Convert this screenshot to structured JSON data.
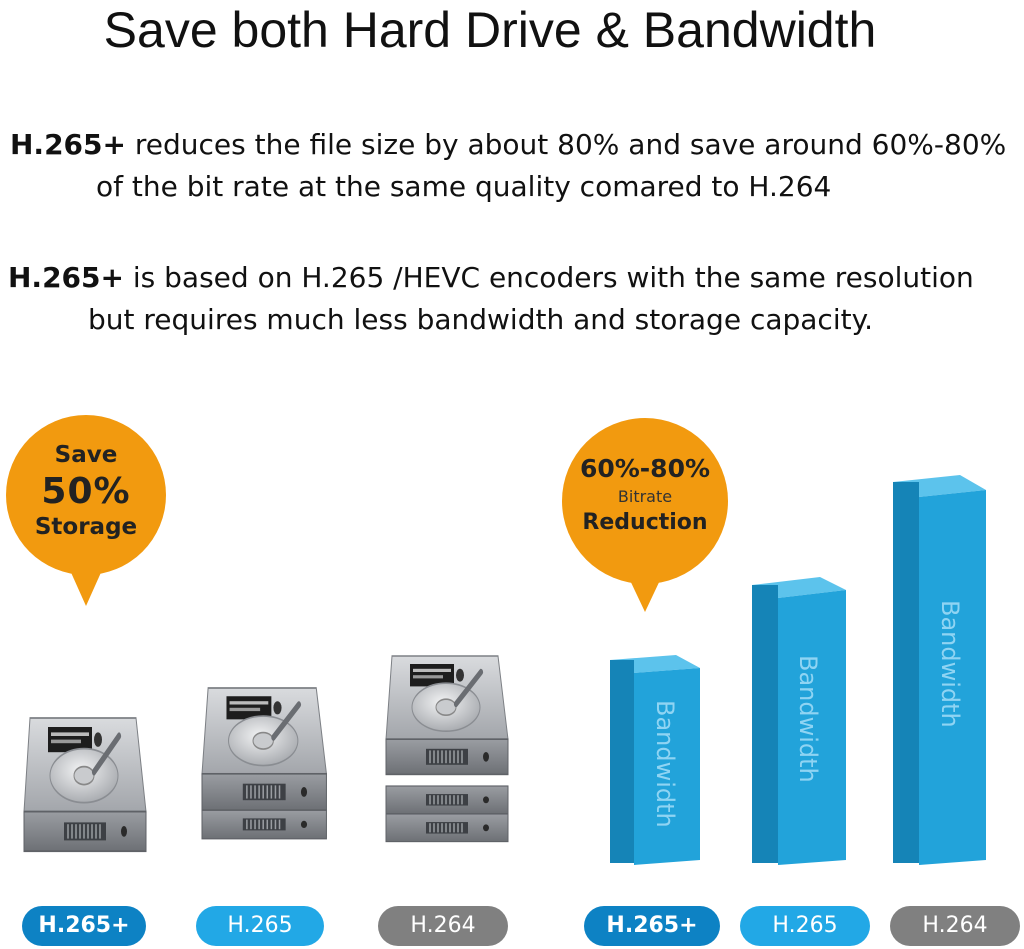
{
  "title": "Save both Hard Drive & Bandwidth",
  "paragraph1": {
    "bold": "H.265+",
    "line1_rest": " reduces the file size by about 80%  and save around 60%-80%",
    "line2": "of the bit rate at the same quality comared to H.264"
  },
  "paragraph2": {
    "bold": "H.265+",
    "line1_rest": " is based on H.265 /HEVC encoders with the same resolution",
    "line2": "but requires much less bandwidth and storage capacity."
  },
  "storage_bubble": {
    "line1": "Save",
    "line2": "50%",
    "line3": "Storage"
  },
  "bitrate_bubble": {
    "line1": "60%-80%",
    "line2": "Bitrate",
    "line3": "Reduction"
  },
  "bar_label": "Bandwidth",
  "storage_labels": [
    "H.265+",
    "H.265",
    "H.264"
  ],
  "bandwidth_labels": [
    "H.265+",
    "H.265",
    "H.264"
  ],
  "colors": {
    "accent_orange": "#f29a0f",
    "bar_blue": "#1e9fd6",
    "pill_dark_blue": "#0d82c4",
    "pill_light_blue": "#22a8e6",
    "pill_gray": "#808080"
  },
  "icons": {
    "drive": "hard-drive-icon"
  }
}
